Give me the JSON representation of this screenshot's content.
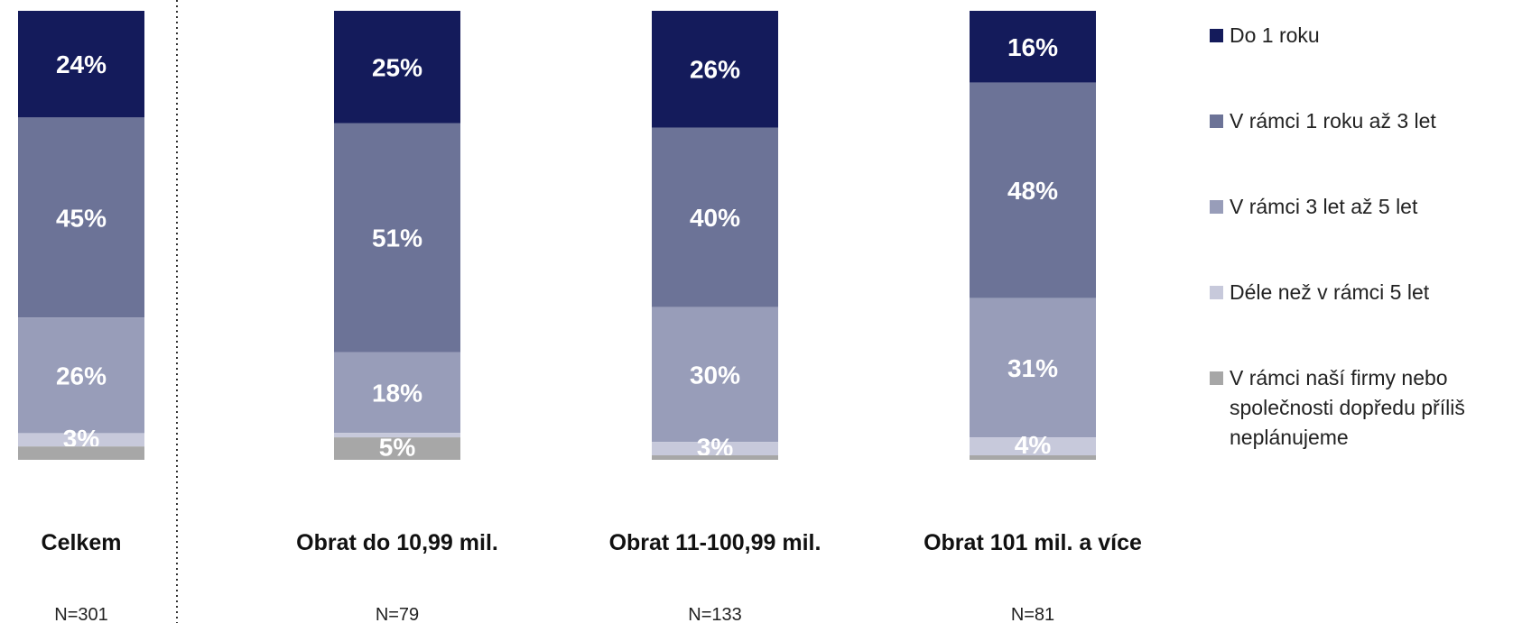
{
  "chart_data": {
    "type": "bar",
    "stacked": true,
    "percent": true,
    "categories": [
      "Celkem",
      "Obrat do 10,99 mil.",
      "Obrat 11-100,99 mil.",
      "Obrat 101 mil. a více"
    ],
    "sample_sizes": [
      "N=301",
      "N=79",
      "N=133",
      "N=81"
    ],
    "series": [
      {
        "name": "Do 1 roku",
        "values": [
          24,
          25,
          26,
          16
        ],
        "labels": [
          "24%",
          "25%",
          "26%",
          "16%"
        ],
        "color": "#141b5b"
      },
      {
        "name": "V rámci 1 roku až 3 let",
        "values": [
          45,
          51,
          40,
          48
        ],
        "labels": [
          "45%",
          "51%",
          "40%",
          "48%"
        ],
        "color": "#6c7397"
      },
      {
        "name": "V rámci 3 let až 5 let",
        "values": [
          26,
          18,
          30,
          31
        ],
        "labels": [
          "26%",
          "18%",
          "30%",
          "31%"
        ],
        "color": "#989db9"
      },
      {
        "name": "Déle než v rámci 5 let",
        "values": [
          3,
          1,
          3,
          4
        ],
        "labels": [
          "3%",
          "",
          "3%",
          "4%"
        ],
        "color": "#c7c9db"
      },
      {
        "name": "V rámci naší firmy nebo společnosti dopředu příliš neplánujeme",
        "legend_lines": [
          "V rámci naší firmy nebo",
          "společnosti dopředu příliš",
          "neplánujeme"
        ],
        "values": [
          3,
          5,
          1,
          1
        ],
        "labels": [
          "",
          "5%",
          "",
          ""
        ],
        "color": "#a7a7a7"
      }
    ],
    "ylim": [
      0,
      100
    ],
    "legend": "right",
    "grid": false,
    "separator_after_first": true
  }
}
